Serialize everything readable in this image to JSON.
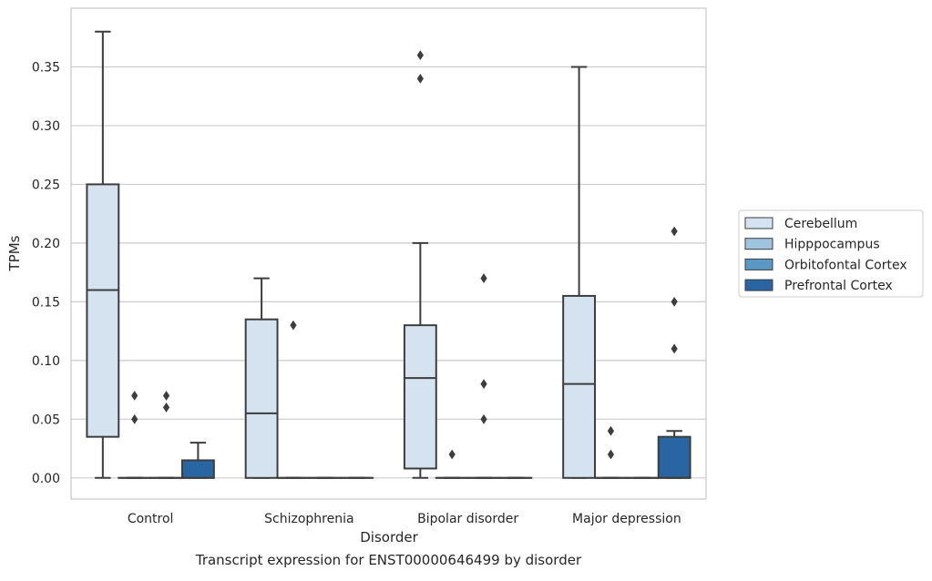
{
  "chart_data": {
    "type": "box",
    "xlabel": "Disorder",
    "ylabel": "TPMs",
    "caption": "Transcript expression for ENST00000646499 by disorder",
    "categories": [
      "Control",
      "Schizophrenia",
      "Bipolar disorder",
      "Major depression"
    ],
    "ylim": [
      -0.018,
      0.4
    ],
    "yticks": [
      0.0,
      0.05,
      0.1,
      0.15,
      0.2,
      0.25,
      0.3,
      0.35
    ],
    "ytick_labels": [
      "0.00",
      "0.05",
      "0.10",
      "0.15",
      "0.20",
      "0.25",
      "0.30",
      "0.35"
    ],
    "grid": "horizontal",
    "legend_position": "right",
    "series": [
      {
        "name": "Cerebellum",
        "color": "#d5e3f1",
        "boxes": [
          {
            "whislo": 0.0,
            "q1": 0.035,
            "med": 0.16,
            "q3": 0.25,
            "whishi": 0.38,
            "fliers": []
          },
          {
            "whislo": 0.0,
            "q1": 0.0,
            "med": 0.055,
            "q3": 0.135,
            "whishi": 0.17,
            "fliers": []
          },
          {
            "whislo": 0.0,
            "q1": 0.008,
            "med": 0.085,
            "q3": 0.13,
            "whishi": 0.2,
            "fliers": [
              0.34,
              0.36
            ]
          },
          {
            "whislo": 0.0,
            "q1": 0.0,
            "med": 0.08,
            "q3": 0.155,
            "whishi": 0.35,
            "fliers": []
          }
        ]
      },
      {
        "name": "Hipppocampus",
        "color": "#9fc4df",
        "boxes": [
          {
            "whislo": 0.0,
            "q1": 0.0,
            "med": 0.0,
            "q3": 0.0,
            "whishi": 0.0,
            "fliers": [
              0.05,
              0.07
            ]
          },
          {
            "whislo": 0.0,
            "q1": 0.0,
            "med": 0.0,
            "q3": 0.0,
            "whishi": 0.0,
            "fliers": [
              0.13
            ]
          },
          {
            "whislo": 0.0,
            "q1": 0.0,
            "med": 0.0,
            "q3": 0.0,
            "whishi": 0.0,
            "fliers": [
              0.02
            ]
          },
          {
            "whislo": 0.0,
            "q1": 0.0,
            "med": 0.0,
            "q3": 0.0,
            "whishi": 0.0,
            "fliers": [
              0.02,
              0.04
            ]
          }
        ]
      },
      {
        "name": "Orbitofontal Cortex",
        "color": "#5a98c6",
        "boxes": [
          {
            "whislo": 0.0,
            "q1": 0.0,
            "med": 0.0,
            "q3": 0.0,
            "whishi": 0.0,
            "fliers": [
              0.06,
              0.07
            ]
          },
          {
            "whislo": 0.0,
            "q1": 0.0,
            "med": 0.0,
            "q3": 0.0,
            "whishi": 0.0,
            "fliers": []
          },
          {
            "whislo": 0.0,
            "q1": 0.0,
            "med": 0.0,
            "q3": 0.0,
            "whishi": 0.0,
            "fliers": [
              0.05,
              0.08,
              0.17
            ]
          },
          {
            "whislo": 0.0,
            "q1": 0.0,
            "med": 0.0,
            "q3": 0.0,
            "whishi": 0.0,
            "fliers": []
          }
        ]
      },
      {
        "name": "Prefrontal Cortex",
        "color": "#2964a3",
        "boxes": [
          {
            "whislo": 0.0,
            "q1": 0.0,
            "med": 0.0,
            "q3": 0.015,
            "whishi": 0.03,
            "fliers": []
          },
          {
            "whislo": 0.0,
            "q1": 0.0,
            "med": 0.0,
            "q3": 0.0,
            "whishi": 0.0,
            "fliers": []
          },
          {
            "whislo": 0.0,
            "q1": 0.0,
            "med": 0.0,
            "q3": 0.0,
            "whishi": 0.0,
            "fliers": []
          },
          {
            "whislo": 0.0,
            "q1": 0.0,
            "med": 0.0,
            "q3": 0.035,
            "whishi": 0.04,
            "fliers": [
              0.11,
              0.15,
              0.21
            ]
          }
        ]
      }
    ]
  }
}
